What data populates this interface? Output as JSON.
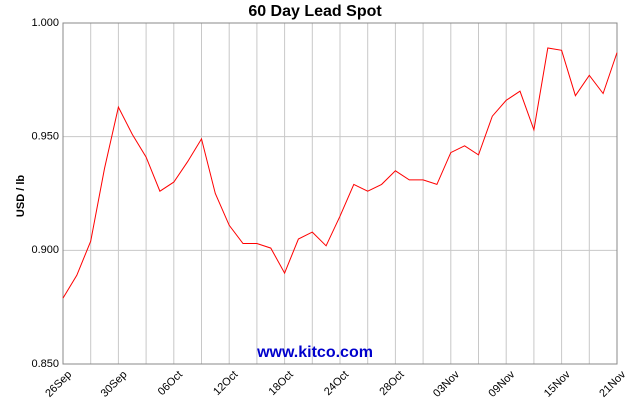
{
  "chart_data": {
    "type": "line",
    "title": "60 Day Lead Spot",
    "y_label": "USD / lb",
    "watermark": "www.kitco.com",
    "categories": [
      "26Sep",
      null,
      null,
      null,
      "30Sep",
      null,
      null,
      null,
      "06Oct",
      null,
      null,
      null,
      "12Oct",
      null,
      null,
      null,
      "18Oct",
      null,
      null,
      null,
      "24Oct",
      null,
      null,
      null,
      "28Oct",
      null,
      null,
      null,
      "03Nov",
      null,
      null,
      null,
      "09Nov",
      null,
      null,
      null,
      "15Nov",
      null,
      null,
      null,
      "21Nov"
    ],
    "series": [
      {
        "name": "Lead",
        "color": "#ff0000",
        "values": [
          0.879,
          0.889,
          0.904,
          0.936,
          0.963,
          0.951,
          0.941,
          0.926,
          0.93,
          0.939,
          0.949,
          0.925,
          0.911,
          0.903,
          0.903,
          0.901,
          0.89,
          0.905,
          0.908,
          0.902,
          0.915,
          0.929,
          0.926,
          0.929,
          0.935,
          0.931,
          0.931,
          0.929,
          0.943,
          0.946,
          0.942,
          0.959,
          0.966,
          0.97,
          0.953,
          0.989,
          0.988,
          0.968,
          0.977,
          0.969,
          0.987
        ]
      }
    ],
    "ylim": [
      0.85,
      1.0
    ],
    "yticks": [
      {
        "value": 0.85,
        "label": "0.850"
      },
      {
        "value": 0.9,
        "label": "0.900"
      },
      {
        "value": 0.95,
        "label": "0.950"
      },
      {
        "value": 1.0,
        "label": "1.000"
      }
    ],
    "grid": true
  }
}
